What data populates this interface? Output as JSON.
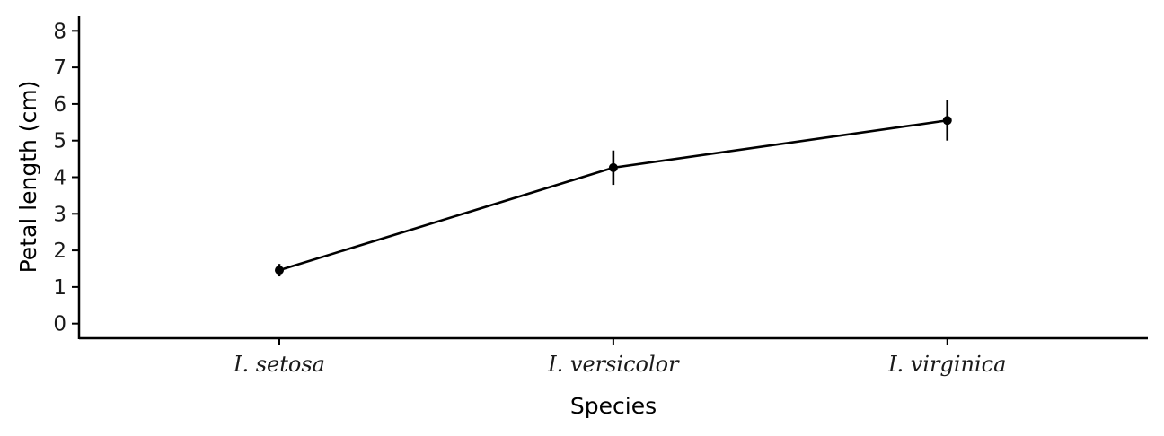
{
  "chart_data": {
    "type": "line",
    "categories": [
      "I. setosa",
      "I. versicolor",
      "I. virginica"
    ],
    "values": [
      1.46,
      4.26,
      5.55
    ],
    "error_low": [
      1.29,
      3.79,
      5.0
    ],
    "error_high": [
      1.63,
      4.73,
      6.1
    ],
    "xlabel": "Species",
    "ylabel": "Petal length (cm)",
    "ylim": [
      -0.4,
      8.4
    ],
    "yticks": [
      "0",
      "1",
      "2",
      "3",
      "4",
      "5",
      "6",
      "7",
      "8"
    ],
    "grid": false,
    "color": "#000000"
  }
}
